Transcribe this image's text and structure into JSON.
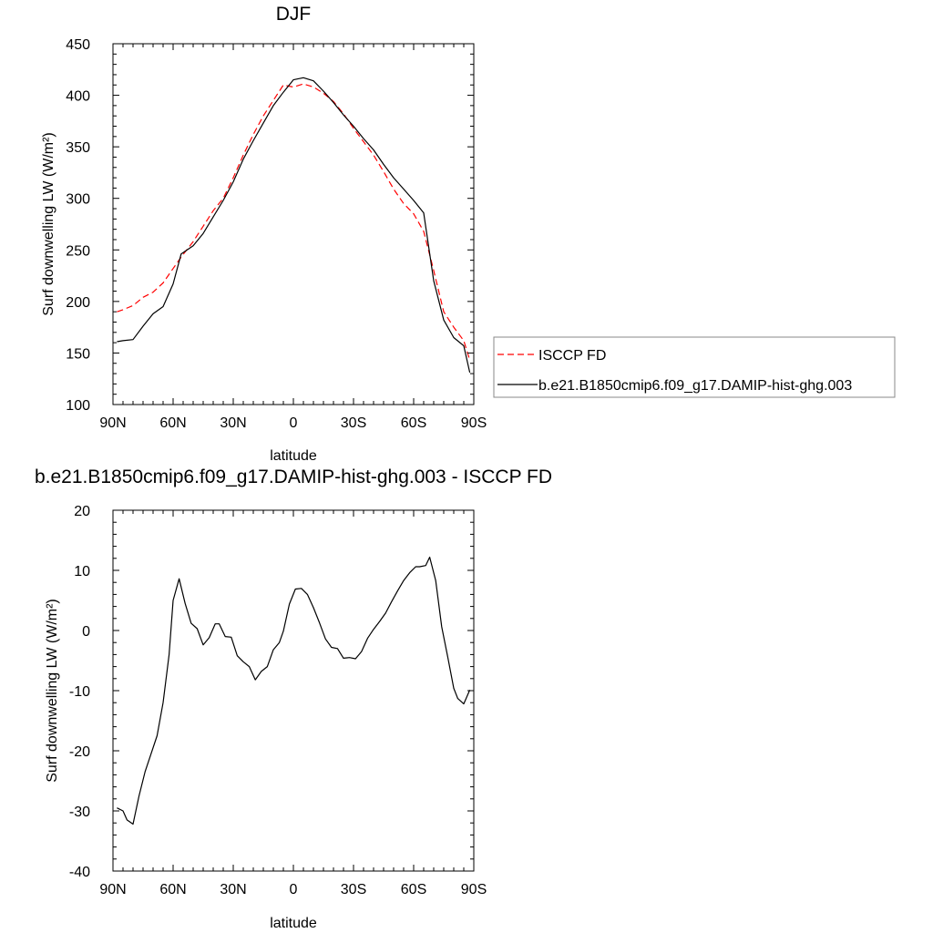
{
  "chart_data": [
    {
      "type": "line",
      "title": "DJF",
      "xlabel": "latitude",
      "ylabel": "Surf downwelling LW (W/m²)",
      "xlim": [
        -90,
        90
      ],
      "ylim": [
        100,
        450
      ],
      "xticks": [
        -90,
        -60,
        -30,
        0,
        30,
        60,
        90
      ],
      "xtick_labels": [
        "90N",
        "60N",
        "30N",
        "0",
        "30S",
        "60S",
        "90S"
      ],
      "yticks": [
        100,
        150,
        200,
        250,
        300,
        350,
        400,
        450
      ],
      "ytick_labels": [
        "100",
        "150",
        "200",
        "250",
        "300",
        "350",
        "400",
        "450"
      ],
      "grid": false,
      "legend_position": "outside-right",
      "x": [
        -88,
        -85,
        -80,
        -75,
        -70,
        -65,
        -60,
        -56,
        -50,
        -45,
        -40,
        -35,
        -30,
        -25,
        -20,
        -15,
        -10,
        -5,
        0,
        5,
        10,
        15,
        20,
        25,
        30,
        35,
        40,
        45,
        50,
        55,
        60,
        65,
        70,
        75,
        80,
        85,
        88
      ],
      "series": [
        {
          "name": "ISCCP FD",
          "color": "#ff0000",
          "dash": "dashed",
          "values": [
            190,
            192,
            196,
            204,
            209,
            218,
            232,
            243,
            258,
            273,
            288,
            300,
            320,
            342,
            362,
            380,
            395,
            410,
            408,
            411,
            408,
            402,
            394,
            382,
            368,
            355,
            342,
            326,
            309,
            295,
            285,
            268,
            230,
            190,
            175,
            162,
            143
          ]
        },
        {
          "name": "b.e21.B1850cmip6.f09_g17.DAMIP-hist-ghg.003",
          "color": "#000000",
          "dash": "solid",
          "values": [
            161,
            162,
            163,
            176,
            188,
            195,
            217,
            246,
            254,
            266,
            282,
            298,
            316,
            338,
            356,
            373,
            390,
            403,
            415,
            417,
            414,
            404,
            393,
            381,
            370,
            358,
            347,
            333,
            320,
            309,
            298,
            286,
            220,
            182,
            165,
            157,
            131
          ]
        }
      ]
    },
    {
      "type": "line",
      "title": "b.e21.B1850cmip6.f09_g17.DAMIP-hist-ghg.003 - ISCCP FD",
      "xlabel": "latitude",
      "ylabel": "Surf downwelling LW (W/m²)",
      "xlim": [
        -90,
        90
      ],
      "ylim": [
        -40,
        20
      ],
      "xticks": [
        -90,
        -60,
        -30,
        0,
        30,
        60,
        90
      ],
      "xtick_labels": [
        "90N",
        "60N",
        "30N",
        "0",
        "30S",
        "60S",
        "90S"
      ],
      "yticks": [
        -40,
        -30,
        -20,
        -10,
        0,
        10,
        20
      ],
      "ytick_labels": [
        "-40",
        "-30",
        "-20",
        "-10",
        "0",
        "10",
        "20"
      ],
      "grid": false,
      "x": [
        -88,
        -85,
        -83,
        -80,
        -77,
        -74,
        -71,
        -68,
        -65,
        -62,
        -60,
        -57,
        -54,
        -51,
        -48,
        -45,
        -42,
        -39,
        -37,
        -34,
        -31,
        -28,
        -25,
        -22,
        -19,
        -16,
        -13,
        -10,
        -7,
        -5,
        -2,
        1,
        4,
        7,
        10,
        13,
        16,
        19,
        22,
        25,
        28,
        31,
        34,
        37,
        40,
        43,
        46,
        49,
        52,
        55,
        58,
        61,
        63,
        66,
        68,
        71,
        74,
        77,
        80,
        82,
        85,
        88
      ],
      "series": [
        {
          "name": "",
          "color": "#000000",
          "dash": "solid",
          "values": [
            -29.5,
            -30,
            -31.5,
            -32.2,
            -27.5,
            -23.5,
            -20.5,
            -17.5,
            -12,
            -4,
            5,
            8.6,
            4.5,
            1.2,
            0.3,
            -2.4,
            -1.2,
            1.1,
            1.1,
            -1,
            -1.1,
            -4.2,
            -5.2,
            -6,
            -8.2,
            -6.8,
            -6,
            -3.2,
            -2,
            -0.1,
            4.4,
            6.9,
            7,
            6,
            3.8,
            1.3,
            -1.4,
            -2.8,
            -3,
            -4.6,
            -4.5,
            -4.7,
            -3.5,
            -1.3,
            0.2,
            1.5,
            2.9,
            4.8,
            6.6,
            8.3,
            9.6,
            10.6,
            10.6,
            10.8,
            12.2,
            8.3,
            0.6,
            -4.4,
            -9.6,
            -11.3,
            -12.2,
            -9.9
          ]
        }
      ]
    }
  ]
}
